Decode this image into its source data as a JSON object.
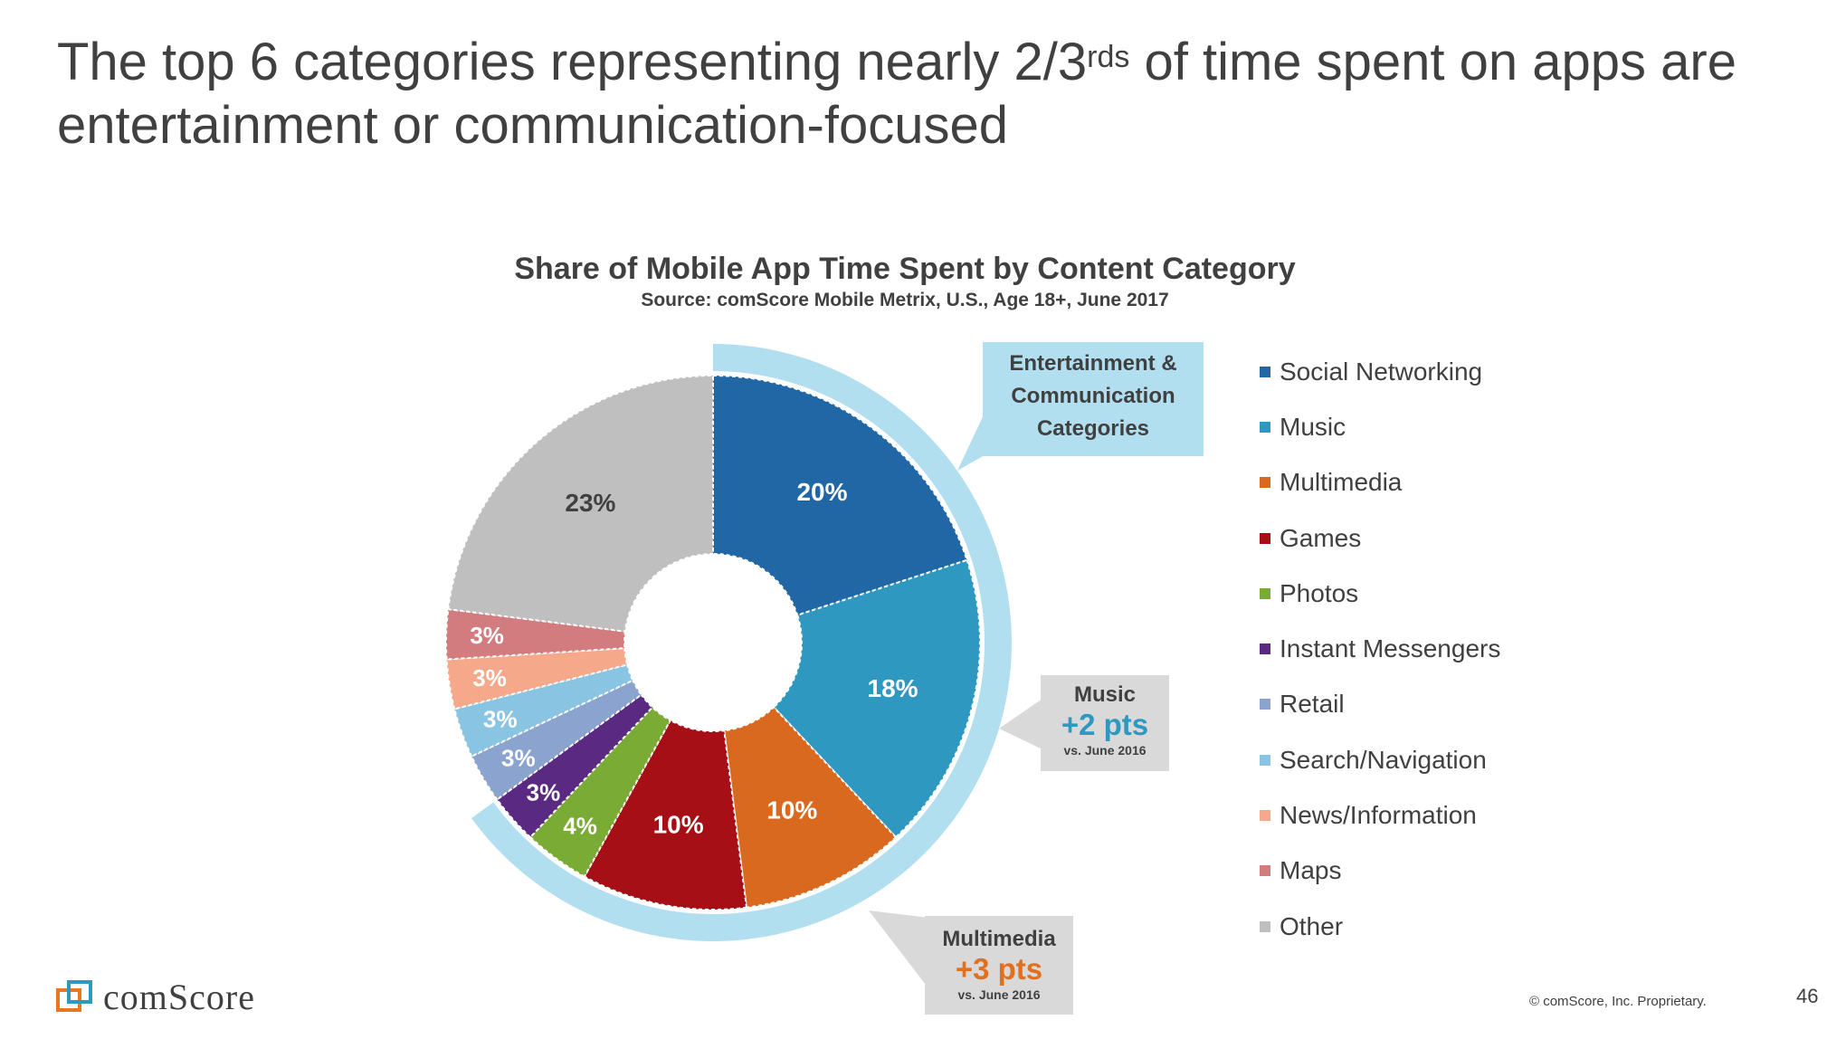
{
  "slide": {
    "title_part1": "The top 6 categories representing nearly 2/3",
    "title_sup": "rds",
    "title_part2": " of time spent on apps are entertainment or communication-focused",
    "page_number": "46",
    "copyright": "© comScore, Inc. Proprietary.",
    "logo_text": "comScore"
  },
  "colors": {
    "ring": "#b2dfef",
    "callout_grey": "#d9d9d9",
    "music_accent": "#2e98c0",
    "multimedia_accent": "#e07020",
    "label_dark": "#404040"
  },
  "callouts": {
    "entertainment": {
      "text": "Entertainment & Communication Categories"
    },
    "music": {
      "head": "Music",
      "delta": "+2 pts",
      "sub": "vs. June 2016"
    },
    "multimedia": {
      "head": "Multimedia",
      "delta": "+3 pts",
      "sub": "vs. June 2016"
    }
  },
  "chart_data": {
    "type": "pie",
    "variant": "donut",
    "title": "Share of Mobile App Time Spent by Content Category",
    "subtitle": "Source: comScore Mobile Metrix, U.S., Age 18+, June 2017",
    "categories": [
      "Social Networking",
      "Music",
      "Multimedia",
      "Games",
      "Photos",
      "Instant Messengers",
      "Retail",
      "Search/Navigation",
      "News/Information",
      "Maps",
      "Other"
    ],
    "values": [
      20,
      18,
      10,
      10,
      4,
      3,
      3,
      3,
      3,
      3,
      23
    ],
    "labels": [
      "20%",
      "18%",
      "10%",
      "10%",
      "4%",
      "3%",
      "3%",
      "3%",
      "3%",
      "3%",
      "23%"
    ],
    "colors": [
      "#2166a5",
      "#2e98c0",
      "#d9691e",
      "#a50f15",
      "#7aab34",
      "#5a2a82",
      "#8ba3cf",
      "#89c4e2",
      "#f5a98a",
      "#d27c80",
      "#bfbfbf"
    ],
    "highlighted_group": "Entertainment & Communication Categories",
    "highlighted_count": 6,
    "legend_position": "right"
  }
}
